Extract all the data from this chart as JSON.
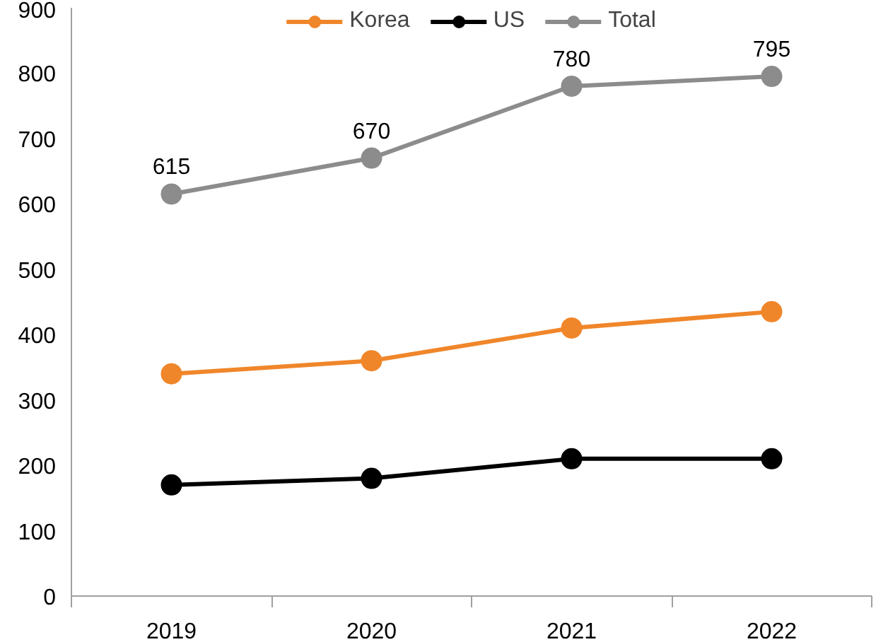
{
  "chart_data": {
    "type": "line",
    "categories": [
      "2019",
      "2020",
      "2021",
      "2022"
    ],
    "ylim": [
      0,
      900
    ],
    "yticks": [
      0,
      100,
      200,
      300,
      400,
      500,
      600,
      700,
      800,
      900
    ],
    "grid": false,
    "legend": "top",
    "marker": "circle",
    "line_style": "solid",
    "series": [
      {
        "name": "Korea",
        "color": "#f0862a",
        "values": [
          340,
          360,
          410,
          435
        ]
      },
      {
        "name": "US",
        "color": "#000000",
        "values": [
          170,
          180,
          210,
          210
        ]
      },
      {
        "name": "Total",
        "color": "#8c8c8c",
        "values": [
          615,
          670,
          780,
          795
        ],
        "value_labels": [
          "615",
          "670",
          "780",
          "795"
        ]
      }
    ]
  }
}
